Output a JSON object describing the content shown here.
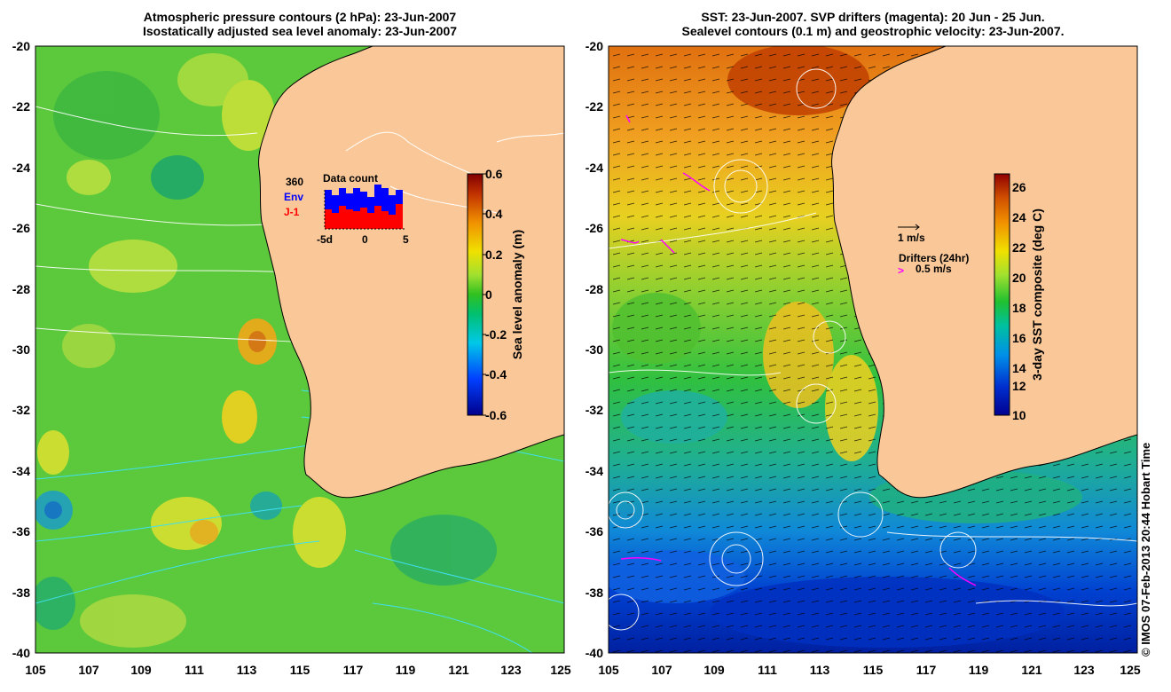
{
  "left_panel": {
    "title_line1": "Atmospheric pressure contours (2 hPa): 23-Jun-2007",
    "title_line2": "Isostatically adjusted sea level anomaly: 23-Jun-2007",
    "y_ticks": [
      "-20",
      "-22",
      "-24",
      "-26",
      "-28",
      "-30",
      "-32",
      "-34",
      "-36",
      "-38",
      "-40"
    ],
    "x_ticks": [
      "105",
      "107",
      "109",
      "111",
      "113",
      "115",
      "117",
      "119",
      "121",
      "123",
      "125"
    ],
    "colorbar": {
      "label": "Sea level anomaly (m)",
      "ticks": [
        "0.6",
        "0.4",
        "0.2",
        "0",
        "-0.2",
        "-0.4",
        "-0.6"
      ]
    },
    "data_count": {
      "title": "Data count",
      "max_label": "360",
      "env_label": "Env",
      "j1_label": "J-1",
      "axis_labels": [
        "-5d",
        "0",
        "5"
      ],
      "env_color": "#0000ff",
      "j1_color": "#ff0000"
    }
  },
  "right_panel": {
    "title_line1": "SST: 23-Jun-2007. SVP drifters (magenta): 20 Jun - 25 Jun.",
    "title_line2": "Sealevel contours (0.1 m) and geostrophic velocity: 23-Jun-2007.",
    "y_ticks": [
      "-20",
      "-22",
      "-24",
      "-26",
      "-28",
      "-30",
      "-32",
      "-34",
      "-36",
      "-38",
      "-40"
    ],
    "x_ticks": [
      "105",
      "107",
      "109",
      "111",
      "113",
      "115",
      "117",
      "119",
      "121",
      "123",
      "125"
    ],
    "colorbar": {
      "label": "3-day SST composite (deg C)",
      "ticks": [
        "26",
        "24",
        "22",
        "20",
        "18",
        "16",
        "14",
        "12",
        "10"
      ]
    },
    "velocity_legend": "1 m/s",
    "drifter_legend_title": "Drifters (24hr)",
    "drifter_legend_speed": "0.5 m/s",
    "drifter_color": "#ff00ff"
  },
  "copyright": "© IMOS 07-Feb-2013 20:44 Hobart Time",
  "colors": {
    "land": "#fac898",
    "land_outline": "#ffffff"
  }
}
